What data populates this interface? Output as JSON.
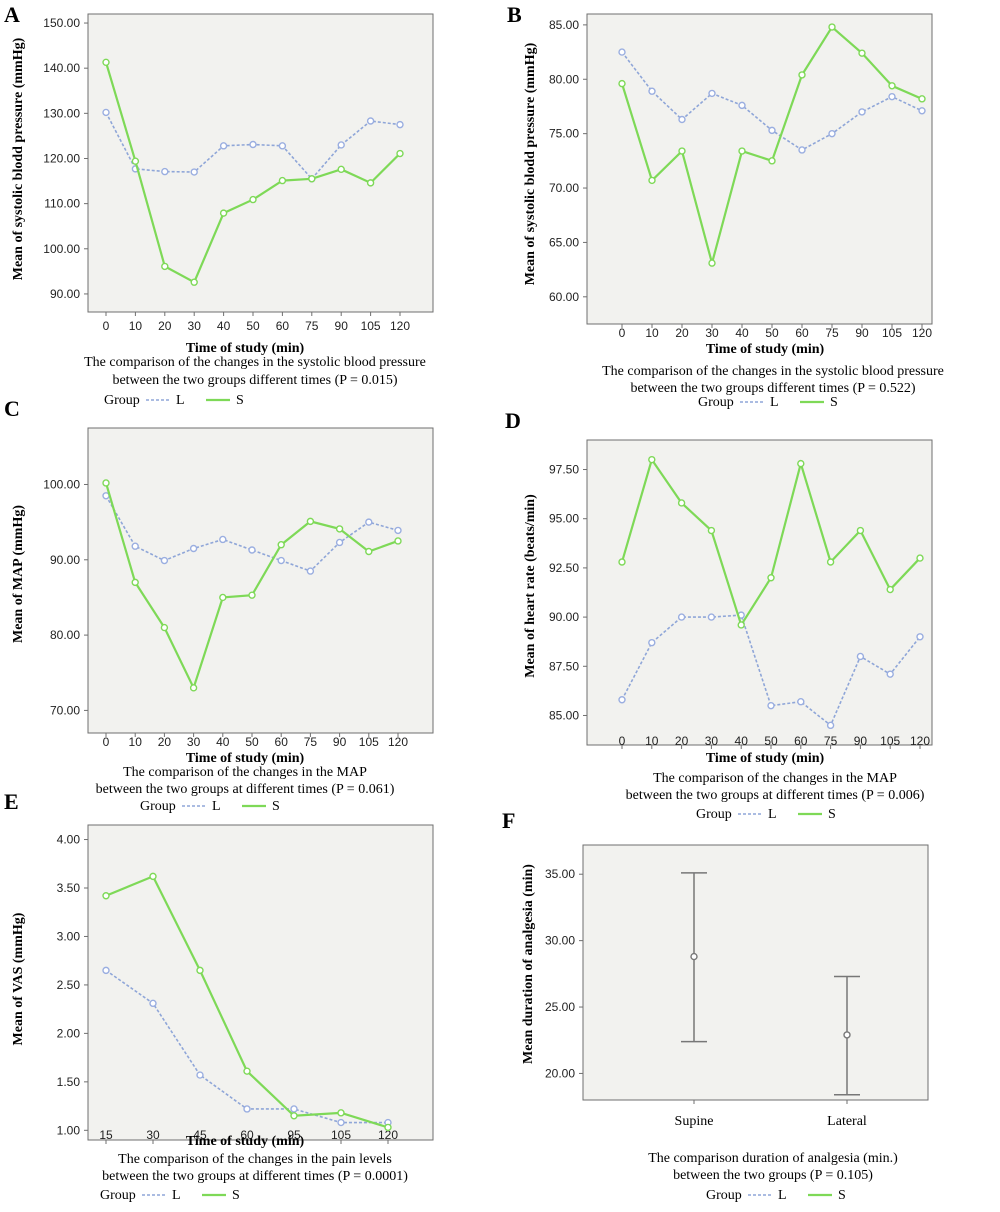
{
  "legend": {
    "group_label": "Group",
    "series_names": [
      "L",
      "S"
    ]
  },
  "colors": {
    "L": "#8fa6d8",
    "S": "#7ed957",
    "marker_L": "#9aaee0",
    "error_bar": "#777777"
  },
  "chart_data": [
    {
      "panel": "A",
      "type": "line",
      "xlabel": "Time of study (min)",
      "ylabel": "Mean of systolic blodd pressure (mmHg)",
      "categories": [
        "0",
        "10",
        "20",
        "30",
        "40",
        "50",
        "60",
        "75",
        "90",
        "105",
        "120"
      ],
      "yticks": [
        "90.00",
        "100.00",
        "110.00",
        "120.00",
        "130.00",
        "140.00",
        "150.00"
      ],
      "ylim": [
        86,
        152
      ],
      "series": [
        {
          "name": "L",
          "values": [
            130.2,
            117.7,
            117.1,
            117.0,
            122.8,
            123.1,
            122.8,
            115.5,
            123.0,
            128.3,
            127.5
          ]
        },
        {
          "name": "S",
          "values": [
            141.3,
            119.4,
            96.1,
            92.6,
            107.9,
            110.9,
            115.1,
            115.5,
            117.6,
            114.6,
            121.1
          ]
        }
      ],
      "caption": [
        "The comparison of the changes in the systolic blood pressure",
        "between the two groups different times (P = 0.015)"
      ],
      "legend": true
    },
    {
      "panel": "B",
      "type": "line",
      "xlabel": "Time of study (min)",
      "ylabel": "Mean of systolic blodd pressure (mmHg)",
      "categories": [
        "0",
        "10",
        "20",
        "30",
        "40",
        "50",
        "60",
        "75",
        "90",
        "105",
        "120"
      ],
      "yticks": [
        "60.00",
        "65.00",
        "70.00",
        "75.00",
        "80.00",
        "85.00"
      ],
      "ylim": [
        57.5,
        86
      ],
      "series": [
        {
          "name": "L",
          "values": [
            82.5,
            78.9,
            76.3,
            78.7,
            77.6,
            75.3,
            73.5,
            75.0,
            77.0,
            78.4,
            77.1
          ]
        },
        {
          "name": "S",
          "values": [
            79.6,
            70.7,
            73.4,
            63.1,
            73.4,
            72.5,
            80.4,
            84.8,
            82.4,
            79.4,
            78.2
          ]
        }
      ],
      "caption": [
        "The comparison of the changes in the systolic blood pressure",
        "between the two groups different times (P = 0.522)"
      ],
      "legend": true
    },
    {
      "panel": "C",
      "type": "line",
      "xlabel": "Time of study (min)",
      "ylabel": "Mean of MAP (mmHg)",
      "categories": [
        "0",
        "10",
        "20",
        "30",
        "40",
        "50",
        "60",
        "75",
        "90",
        "105",
        "120"
      ],
      "yticks": [
        "70.00",
        "80.00",
        "90.00",
        "100.00"
      ],
      "ylim": [
        67,
        107.5
      ],
      "series": [
        {
          "name": "L",
          "values": [
            98.5,
            91.8,
            89.9,
            91.5,
            92.7,
            91.3,
            89.9,
            88.5,
            92.3,
            95.0,
            93.9
          ]
        },
        {
          "name": "S",
          "values": [
            100.2,
            87.0,
            81.0,
            73.0,
            85.0,
            85.3,
            92.0,
            95.1,
            94.1,
            91.1,
            92.5
          ]
        }
      ],
      "caption": [
        "The comparison of the changes in the MAP",
        "between the two groups at different times (P = 0.061)"
      ],
      "legend": true
    },
    {
      "panel": "D",
      "type": "line",
      "xlabel": "Time of study (min)",
      "ylabel": "Mean of heart rate (beats/min)",
      "categories": [
        "0",
        "10",
        "20",
        "30",
        "40",
        "50",
        "60",
        "75",
        "90",
        "105",
        "120"
      ],
      "yticks": [
        "85.00",
        "87.50",
        "90.00",
        "92.50",
        "95.00",
        "97.50"
      ],
      "ylim": [
        83.5,
        99
      ],
      "series": [
        {
          "name": "L",
          "values": [
            85.8,
            88.7,
            90.0,
            90.0,
            90.1,
            85.5,
            85.7,
            84.5,
            88.0,
            87.1,
            89.0
          ]
        },
        {
          "name": "S",
          "values": [
            92.8,
            98.0,
            95.8,
            94.4,
            89.6,
            92.0,
            97.8,
            92.8,
            94.4,
            91.4,
            93.0
          ]
        }
      ],
      "caption": [
        "The comparison of the changes in the MAP",
        "between the two groups at different times (P = 0.006)"
      ],
      "legend": true
    },
    {
      "panel": "E",
      "type": "line",
      "xlabel": "Time of study (min)",
      "ylabel": "Mean of VAS (mmHg)",
      "categories": [
        "15",
        "30",
        "45",
        "60",
        "95",
        "105",
        "120"
      ],
      "yticks": [
        "1.00",
        "1.50",
        "2.00",
        "2.50",
        "3.00",
        "3.50",
        "4.00"
      ],
      "ylim": [
        0.9,
        4.15
      ],
      "series": [
        {
          "name": "L",
          "values": [
            2.65,
            2.31,
            1.57,
            1.22,
            1.22,
            1.08,
            1.08
          ]
        },
        {
          "name": "S",
          "values": [
            3.42,
            3.62,
            2.65,
            1.61,
            1.15,
            1.18,
            1.03
          ]
        }
      ],
      "caption": [
        "The comparison of the changes in the pain levels",
        "between the two groups at different times (P = 0.0001)"
      ],
      "legend": true
    },
    {
      "panel": "F",
      "type": "errorbar",
      "xlabel": "",
      "ylabel": "Mean duration of analgesia (min)",
      "categories": [
        "Supine",
        "Lateral"
      ],
      "yticks": [
        "20.00",
        "25.00",
        "30.00",
        "35.00"
      ],
      "ylim": [
        18,
        37.2
      ],
      "values": [
        28.8,
        22.9
      ],
      "lower": [
        22.4,
        18.4
      ],
      "upper": [
        35.1,
        27.3
      ],
      "caption": [
        "The comparison duration of analgesia (min.)",
        "between the two groups (P = 0.105)"
      ],
      "legend": true
    }
  ]
}
